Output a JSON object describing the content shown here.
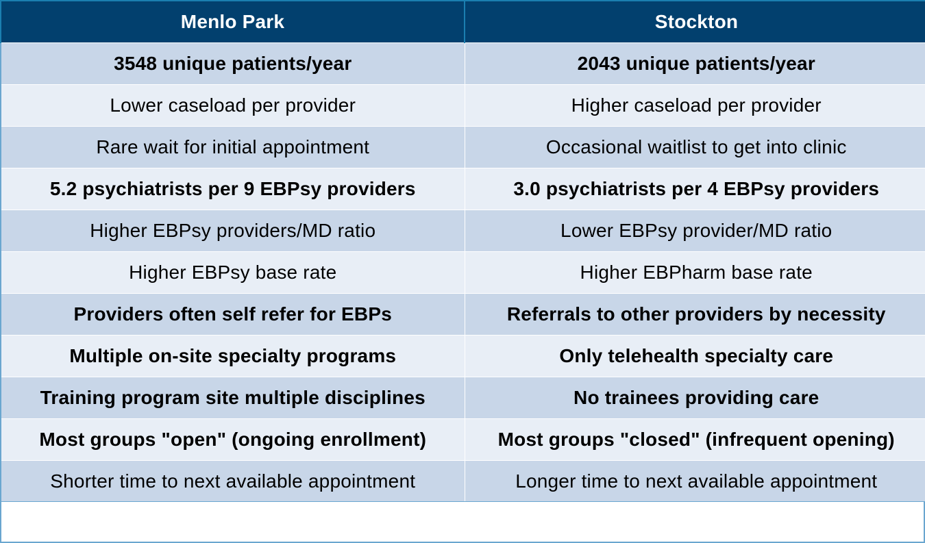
{
  "header": {
    "col1": "Menlo Park",
    "col2": "Stockton"
  },
  "rows": [
    {
      "left": "3548 unique patients/year",
      "right": "2043 unique patients/year"
    },
    {
      "left": "Lower caseload per provider",
      "right": "Higher caseload per provider"
    },
    {
      "left": "Rare wait for initial appointment",
      "right": "Occasional waitlist to get into clinic"
    },
    {
      "left": "5.2 psychiatrists per 9 EBPsy providers",
      "right": "3.0 psychiatrists per 4 EBPsy providers"
    },
    {
      "left": "Higher EBPsy providers/MD ratio",
      "right": "Lower EBPsy provider/MD ratio"
    },
    {
      "left": "Higher EBPsy base rate",
      "right": "Higher EBPharm base rate"
    },
    {
      "left": "Providers often self refer for EBPs",
      "right": "Referrals to other providers by necessity"
    },
    {
      "left": "Multiple on-site specialty programs",
      "right": "Only telehealth specialty care"
    },
    {
      "left": "Training program site multiple disciplines",
      "right": "No trainees providing care"
    },
    {
      "left": "Most groups \"open\" (ongoing enrollment)",
      "right": "Most groups \"closed\" (infrequent opening)"
    },
    {
      "left": "Shorter time to next available appointment",
      "right": "Longer time to next available appointment"
    }
  ],
  "colors": {
    "header_bg": "#02406e",
    "row_dark": "#c8d6e8",
    "row_light": "#e8eef6"
  }
}
